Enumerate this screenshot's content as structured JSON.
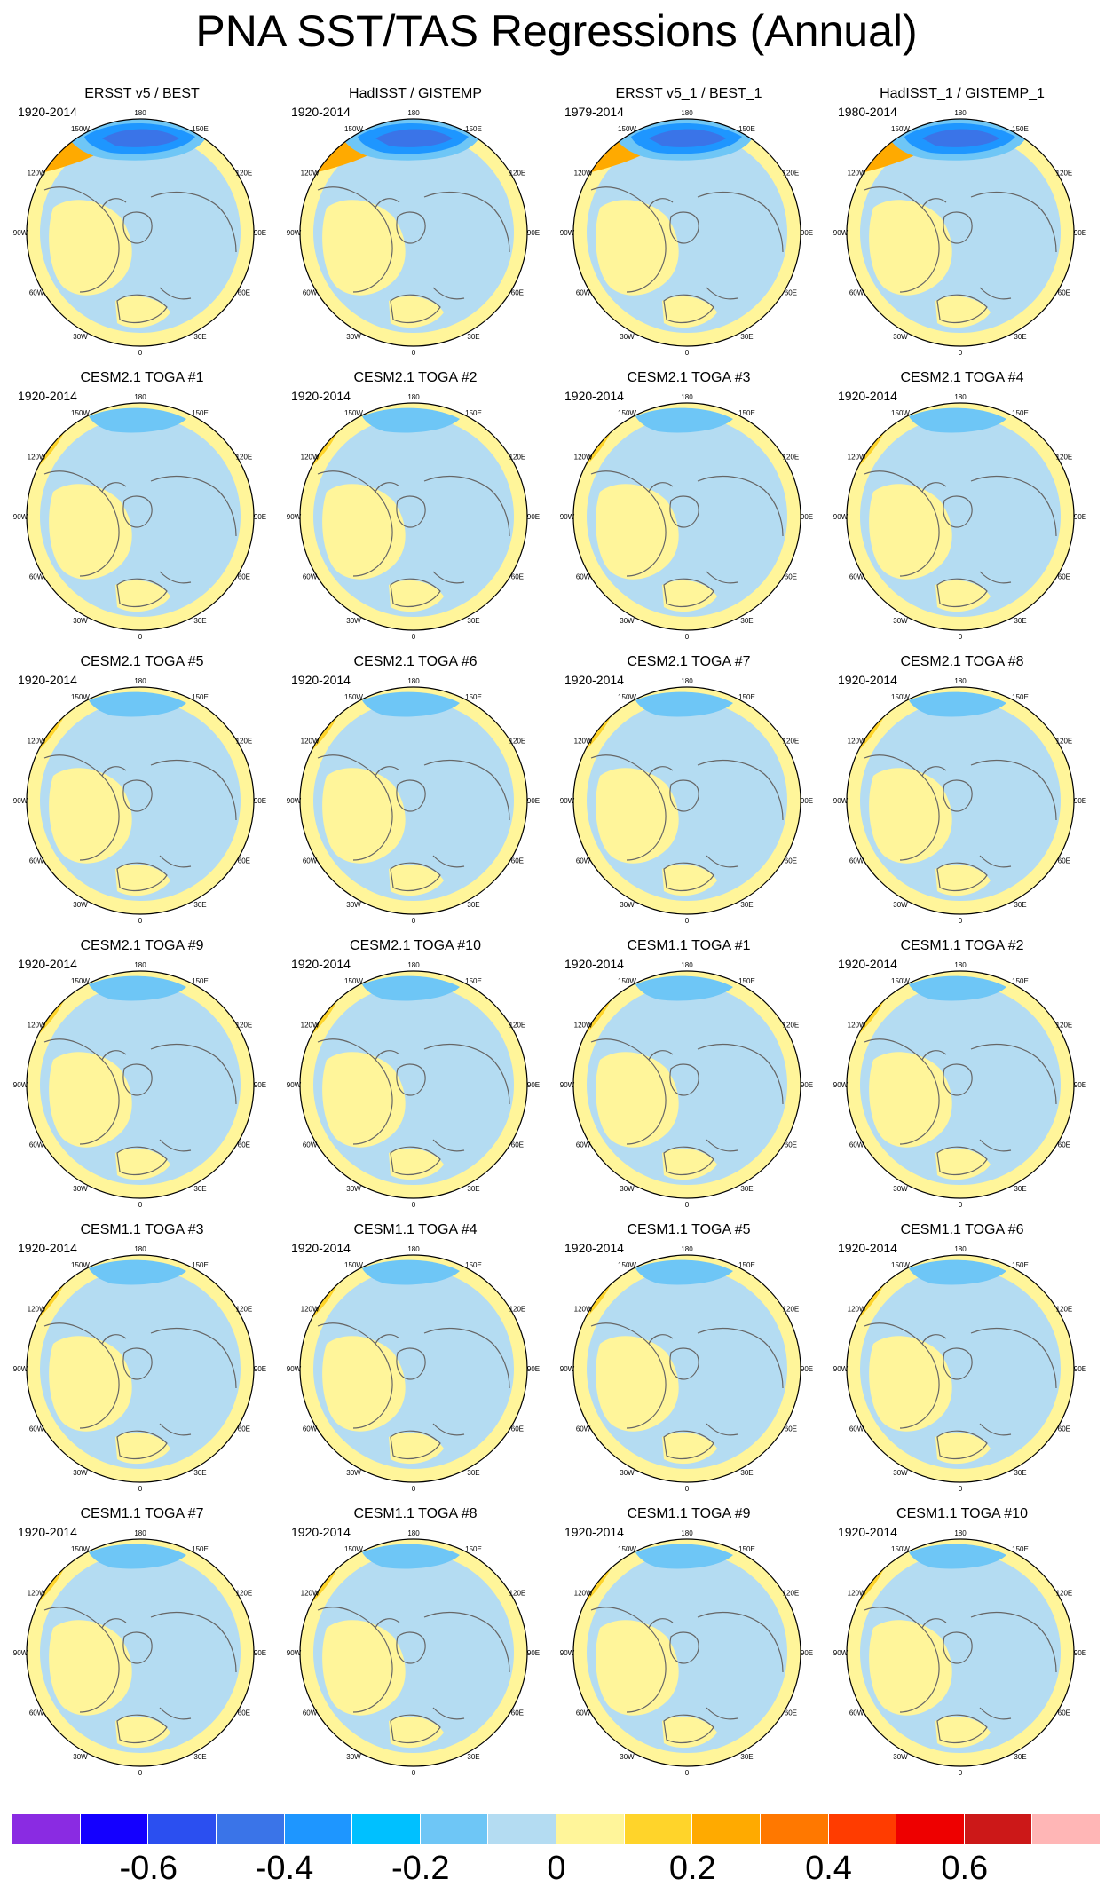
{
  "title": "PNA SST/TAS Regressions (Annual)",
  "lon_labels": [
    "180",
    "150E",
    "120E",
    "90E",
    "60E",
    "30E",
    "0",
    "30W",
    "60W",
    "90W",
    "120W",
    "150W"
  ],
  "panels": [
    {
      "title": "ERSST v5 / BEST",
      "period": "1920-2014",
      "pattern": "obs"
    },
    {
      "title": "HadISST / GISTEMP",
      "period": "1920-2014",
      "pattern": "obs"
    },
    {
      "title": "ERSST v5_1 / BEST_1",
      "period": "1979-2014",
      "pattern": "obs"
    },
    {
      "title": "HadISST_1 / GISTEMP_1",
      "period": "1980-2014",
      "pattern": "obs"
    },
    {
      "title": "CESM2.1 TOGA #1",
      "period": "1920-2014",
      "pattern": "model"
    },
    {
      "title": "CESM2.1 TOGA #2",
      "period": "1920-2014",
      "pattern": "model"
    },
    {
      "title": "CESM2.1 TOGA #3",
      "period": "1920-2014",
      "pattern": "model"
    },
    {
      "title": "CESM2.1 TOGA #4",
      "period": "1920-2014",
      "pattern": "model"
    },
    {
      "title": "CESM2.1 TOGA #5",
      "period": "1920-2014",
      "pattern": "model"
    },
    {
      "title": "CESM2.1 TOGA #6",
      "period": "1920-2014",
      "pattern": "model"
    },
    {
      "title": "CESM2.1 TOGA #7",
      "period": "1920-2014",
      "pattern": "model"
    },
    {
      "title": "CESM2.1 TOGA #8",
      "period": "1920-2014",
      "pattern": "model"
    },
    {
      "title": "CESM2.1 TOGA #9",
      "period": "1920-2014",
      "pattern": "model"
    },
    {
      "title": "CESM2.1 TOGA #10",
      "period": "1920-2014",
      "pattern": "model"
    },
    {
      "title": "CESM1.1 TOGA #1",
      "period": "1920-2014",
      "pattern": "model"
    },
    {
      "title": "CESM1.1 TOGA #2",
      "period": "1920-2014",
      "pattern": "model"
    },
    {
      "title": "CESM1.1 TOGA #3",
      "period": "1920-2014",
      "pattern": "model"
    },
    {
      "title": "CESM1.1 TOGA #4",
      "period": "1920-2014",
      "pattern": "model"
    },
    {
      "title": "CESM1.1 TOGA #5",
      "period": "1920-2014",
      "pattern": "model"
    },
    {
      "title": "CESM1.1 TOGA #6",
      "period": "1920-2014",
      "pattern": "model"
    },
    {
      "title": "CESM1.1 TOGA #7",
      "period": "1920-2014",
      "pattern": "model"
    },
    {
      "title": "CESM1.1 TOGA #8",
      "period": "1920-2014",
      "pattern": "model"
    },
    {
      "title": "CESM1.1 TOGA #9",
      "period": "1920-2014",
      "pattern": "model"
    },
    {
      "title": "CESM1.1 TOGA #10",
      "period": "1920-2014",
      "pattern": "model"
    }
  ],
  "colorbar": {
    "colors": [
      "#8a2be2",
      "#1400ff",
      "#2b4ff0",
      "#3a74e8",
      "#1e96ff",
      "#00c0ff",
      "#6ec6f6",
      "#b4dcf2",
      "#fff59a",
      "#ffd42a",
      "#ffaa00",
      "#ff7800",
      "#ff3c00",
      "#ee0000",
      "#cc1818",
      "#ffb6b6"
    ],
    "labels": [
      "-0.6",
      "-0.4",
      "-0.2",
      "0",
      "0.2",
      "0.4",
      "0.6"
    ],
    "label_bounds": [
      -0.6,
      -0.4,
      -0.2,
      0,
      0.2,
      0.4,
      0.6
    ]
  },
  "palette": {
    "ocean_neutral": "#b4dcf2",
    "land_neutral": "#fff59a",
    "strong_negative": "#3a74e8",
    "negative": "#1e96ff",
    "moderate_negative": "#6ec6f6",
    "positive": "#ffd42a",
    "strong_positive": "#ffaa00",
    "coast": "#666666"
  }
}
